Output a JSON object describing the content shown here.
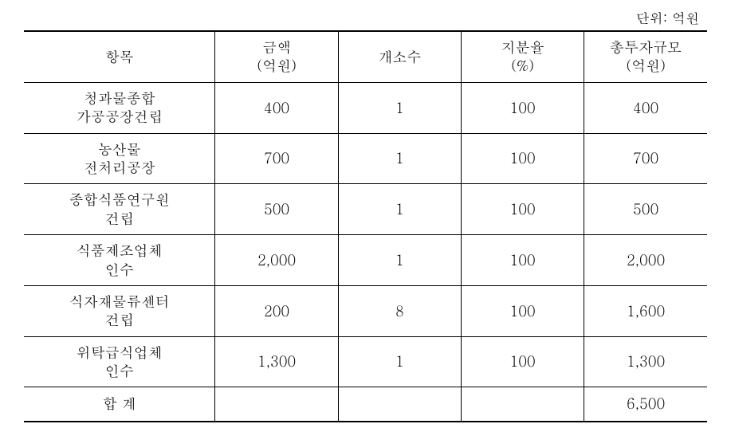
{
  "unit_label": "단위: 억원",
  "table": {
    "headers": {
      "item": "항목",
      "amount_line1": "금액",
      "amount_line2": "(억원)",
      "count": "개소수",
      "share_line1": "지분율",
      "share_line2": "(%)",
      "total_line1": "총투자규모",
      "total_line2": "(억원)"
    },
    "rows": [
      {
        "item_line1": "청과물종합",
        "item_line2": "가공공장건립",
        "amount": "400",
        "count": "1",
        "share": "100",
        "total": "400"
      },
      {
        "item_line1": "농산물",
        "item_line2": "전처리공장",
        "amount": "700",
        "count": "1",
        "share": "100",
        "total": "700"
      },
      {
        "item_line1": "종합식품연구원",
        "item_line2": "건립",
        "amount": "500",
        "count": "1",
        "share": "100",
        "total": "500"
      },
      {
        "item_line1": "식품제조업체",
        "item_line2": "인수",
        "amount": "2,000",
        "count": "1",
        "share": "100",
        "total": "2,000"
      },
      {
        "item_line1": "식자재물류센터",
        "item_line2": "건립",
        "amount": "200",
        "count": "8",
        "share": "100",
        "total": "1,600"
      },
      {
        "item_line1": "위탁급식업체",
        "item_line2": "인수",
        "amount": "1,300",
        "count": "1",
        "share": "100",
        "total": "1,300"
      }
    ],
    "footer": {
      "label": "합 계",
      "amount": "",
      "count": "",
      "share": "",
      "total": "6,500"
    }
  },
  "style": {
    "font_family": "Batang, BatangChe, serif",
    "font_size_body": 18,
    "font_size_unit": 17,
    "border_color": "#000000",
    "background_color": "#ffffff",
    "outer_border_width": 2,
    "inner_border_width": 1
  }
}
